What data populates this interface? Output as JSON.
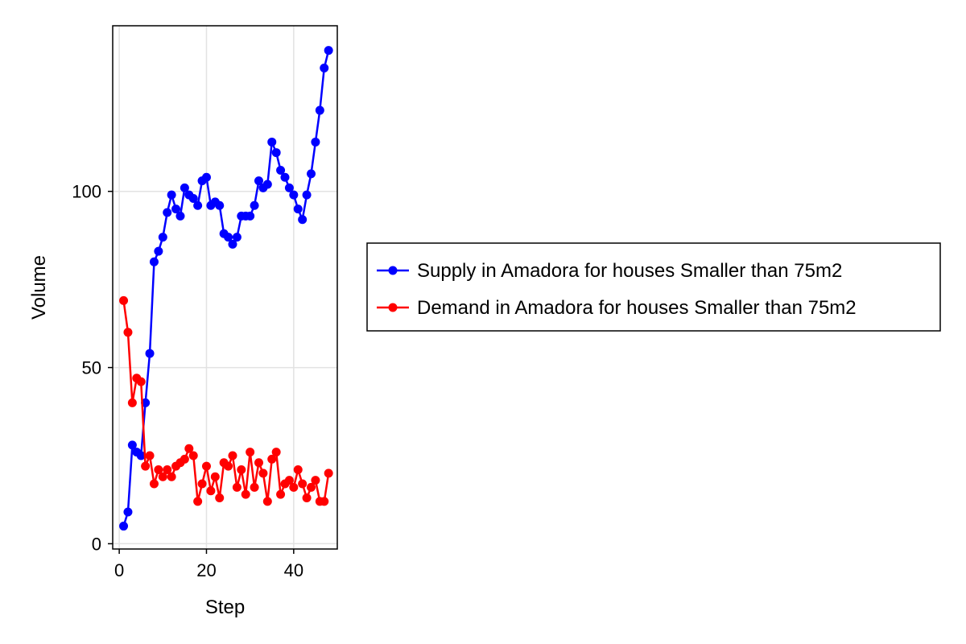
{
  "chart_data": {
    "type": "line",
    "xlabel": "Step",
    "ylabel": "Volume",
    "xlim": [
      -1.5,
      50
    ],
    "ylim": [
      -1.5,
      147
    ],
    "xticks": [
      0,
      20,
      40
    ],
    "yticks": [
      0,
      50,
      100
    ],
    "grid": true,
    "legend_position": "right",
    "series": [
      {
        "name": "Supply in Amadora for houses Smaller than 75m2",
        "color": "#0000ff",
        "marker": "circle",
        "x": [
          1,
          2,
          3,
          4,
          5,
          6,
          7,
          8,
          9,
          10,
          11,
          12,
          13,
          14,
          15,
          16,
          17,
          18,
          19,
          20,
          21,
          22,
          23,
          24,
          25,
          26,
          27,
          28,
          29,
          30,
          31,
          32,
          33,
          34,
          35,
          36,
          37,
          38,
          39,
          40,
          41,
          42,
          43,
          44,
          45,
          46,
          47,
          48
        ],
        "values": [
          5,
          9,
          28,
          26,
          25,
          40,
          54,
          80,
          83,
          87,
          94,
          99,
          95,
          93,
          101,
          99,
          98,
          96,
          103,
          104,
          96,
          97,
          96,
          88,
          87,
          85,
          87,
          93,
          93,
          93,
          96,
          103,
          101,
          102,
          114,
          111,
          106,
          104,
          101,
          99,
          95,
          92,
          99,
          105,
          114,
          123,
          135,
          140
        ]
      },
      {
        "name": "Demand in Amadora for houses Smaller than 75m2",
        "color": "#ff0000",
        "marker": "circle",
        "x": [
          1,
          2,
          3,
          4,
          5,
          6,
          7,
          8,
          9,
          10,
          11,
          12,
          13,
          14,
          15,
          16,
          17,
          18,
          19,
          20,
          21,
          22,
          23,
          24,
          25,
          26,
          27,
          28,
          29,
          30,
          31,
          32,
          33,
          34,
          35,
          36,
          37,
          38,
          39,
          40,
          41,
          42,
          43,
          44,
          45,
          46,
          47,
          48
        ],
        "values": [
          69,
          60,
          40,
          47,
          46,
          22,
          25,
          17,
          21,
          19,
          21,
          19,
          22,
          23,
          24,
          27,
          25,
          12,
          17,
          22,
          15,
          19,
          13,
          23,
          22,
          25,
          16,
          21,
          14,
          26,
          16,
          23,
          20,
          12,
          24,
          26,
          14,
          17,
          18,
          16,
          21,
          17,
          13,
          16,
          18,
          12,
          12,
          20
        ]
      }
    ]
  }
}
